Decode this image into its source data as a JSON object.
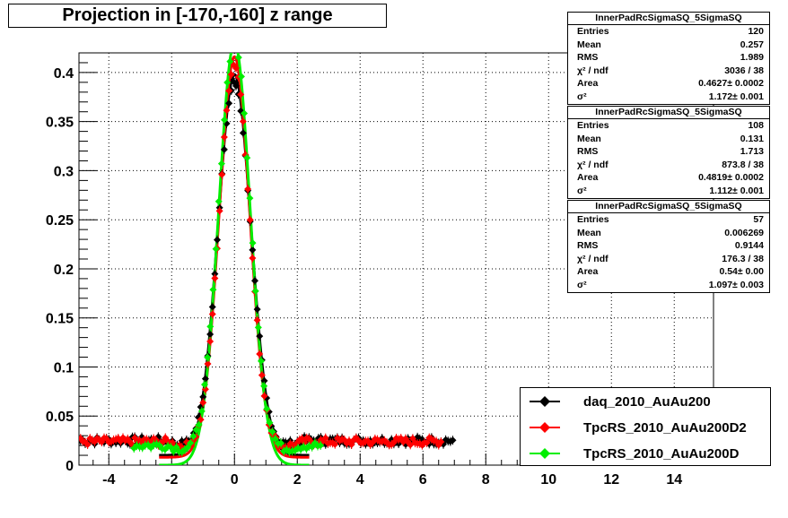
{
  "title": "Projection in [-170,-160] z range",
  "chart_data": {
    "type": "scatter",
    "xlim": [
      -4.95,
      15.25
    ],
    "ylim": [
      0,
      0.42
    ],
    "x_ticks": [
      -4,
      -2,
      0,
      2,
      4,
      6,
      8,
      10,
      12,
      14
    ],
    "x_tick_labels": [
      "-4",
      "-2",
      "0",
      "2",
      "4",
      "6",
      "8",
      "10",
      "12",
      "14"
    ],
    "y_ticks": [
      0,
      0.05,
      0.1,
      0.15,
      0.2,
      0.25,
      0.3,
      0.35,
      0.4
    ],
    "y_tick_labels": [
      "0",
      "0.05",
      "0.1",
      "0.15",
      "0.2",
      "0.25",
      "0.3",
      "0.35",
      "0.4"
    ],
    "grid": true,
    "legend_position": "bottom-right",
    "series": [
      {
        "name": "daq_2010_AuAu200",
        "color": "#000000",
        "marker": "diamond",
        "x_range": [
          -4.9,
          7.0
        ],
        "tail_level": 0.025,
        "fit": {
          "amplitude": 0.388,
          "sigma": 0.52,
          "offset": 0.01,
          "color": "#000000"
        }
      },
      {
        "name": "TpcRS_2010_AuAu200D2",
        "color": "#ff0000",
        "marker": "diamond",
        "x_range": [
          -4.9,
          6.6
        ],
        "tail_level": 0.024,
        "fit": {
          "amplitude": 0.408,
          "sigma": 0.49,
          "offset": 0.008,
          "color": "#ff0000"
        }
      },
      {
        "name": "TpcRS_2010_AuAu200D",
        "color": "#00ee00",
        "marker": "diamond",
        "x_range": [
          -3.2,
          2.8
        ],
        "tail_level": 0.02,
        "fit": {
          "amplitude": 0.43,
          "sigma": 0.5,
          "offset": 0.0,
          "color": "#00ee00"
        }
      }
    ]
  },
  "stats": [
    {
      "name": "InnerPadRcSigmaSQ_5SigmaSQ",
      "rows": [
        {
          "label": "Entries",
          "value": "120"
        },
        {
          "label": "Mean",
          "value": "0.257"
        },
        {
          "label": "RMS",
          "value": "1.989"
        },
        {
          "label": "χ² / ndf",
          "value": "3036 / 38"
        },
        {
          "label": "Area",
          "value": "0.4627± 0.0002"
        },
        {
          "label": "σ²",
          "value": "1.172± 0.001"
        }
      ]
    },
    {
      "name": "InnerPadRcSigmaSQ_5SigmaSQ",
      "rows": [
        {
          "label": "Entries",
          "value": "108"
        },
        {
          "label": "Mean",
          "value": "0.131"
        },
        {
          "label": "RMS",
          "value": "1.713"
        },
        {
          "label": "χ² / ndf",
          "value": "873.8 / 38"
        },
        {
          "label": "Area",
          "value": "0.4819± 0.0002"
        },
        {
          "label": "σ²",
          "value": "1.112± 0.001"
        }
      ]
    },
    {
      "name": "InnerPadRcSigmaSQ_5SigmaSQ",
      "rows": [
        {
          "label": "Entries",
          "value": "57"
        },
        {
          "label": "Mean",
          "value": "0.006269"
        },
        {
          "label": "RMS",
          "value": "0.9144"
        },
        {
          "label": "χ² / ndf",
          "value": "176.3 / 38"
        },
        {
          "label": "Area",
          "value": "0.54± 0.00"
        },
        {
          "label": "σ²",
          "value": "1.097± 0.003"
        }
      ]
    }
  ]
}
